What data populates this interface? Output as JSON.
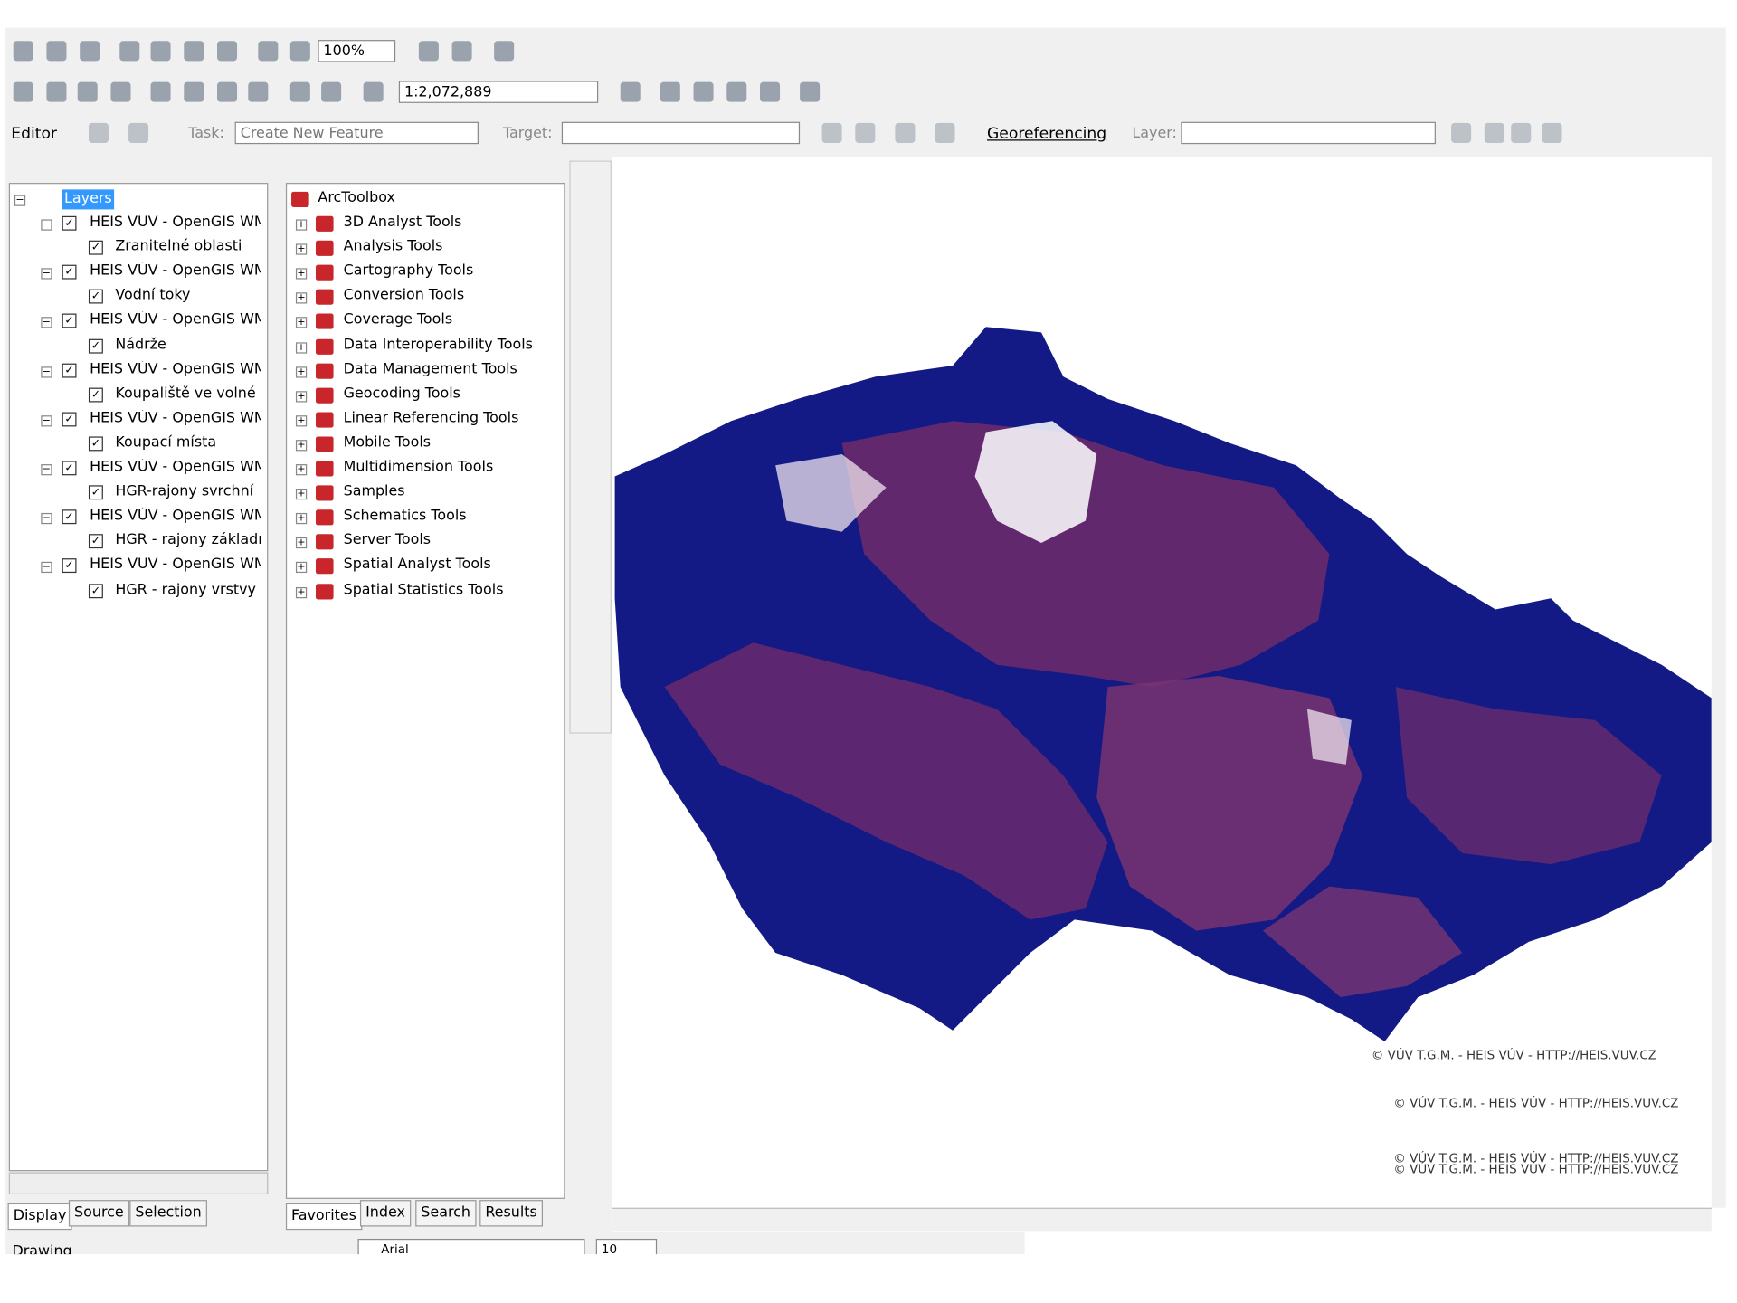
{
  "toolbar": {
    "zoom": "100%",
    "scale": "1:2,072,889",
    "editor": "Editor",
    "task_label": "Task:",
    "task": "Create New Feature",
    "target_label": "Target:",
    "georeferencing": "Georeferencing",
    "layer_label": "Layer:"
  },
  "toc": {
    "root": "Layers",
    "groups": [
      {
        "name": "HEIS VÚV - OpenGIS WM",
        "layer": "Zranitelné oblasti"
      },
      {
        "name": "HEIS VÚV - OpenGIS WM",
        "layer": "Vodní toky"
      },
      {
        "name": "HEIS VÚV - OpenGIS WM",
        "layer": "Nádrže"
      },
      {
        "name": "HEIS VÚV - OpenGIS WM",
        "layer": "Koupaliště ve volné p"
      },
      {
        "name": "HEIS VÚV - OpenGIS WM",
        "layer": "Koupací místa"
      },
      {
        "name": "HEIS VÚV - OpenGIS WM",
        "layer": "HGR-rajony svrchní"
      },
      {
        "name": "HEIS VÚV - OpenGIS WM",
        "layer": "HGR - rajony základn"
      },
      {
        "name": "HEIS VÚV - OpenGIS WM",
        "layer": "HGR - rajony vrstvy l"
      }
    ],
    "tabs": [
      "Display",
      "Source",
      "Selection"
    ]
  },
  "toolbox": {
    "root": "ArcToolbox",
    "items": [
      "3D Analyst Tools",
      "Analysis Tools",
      "Cartography Tools",
      "Conversion Tools",
      "Coverage Tools",
      "Data Interoperability Tools",
      "Data Management Tools",
      "Geocoding Tools",
      "Linear Referencing Tools",
      "Mobile Tools",
      "Multidimension Tools",
      "Samples",
      "Schematics Tools",
      "Server Tools",
      "Spatial Analyst Tools",
      "Spatial Statistics Tools"
    ],
    "tabs": [
      "Favorites",
      "Index",
      "Search",
      "Results"
    ]
  },
  "map": {
    "credits": [
      "© VÚV T.G.M. - HEIS VÚV - HTTP://HEIS.VUV.CZ",
      "© VÚV T.G.M. - HEIS VÚV - HTTP://HEIS.VUV.CZ",
      "© VÚV T.G.M. - HEIS VÚV - HTTP://HEIS.VUV.CZ",
      "© VÚV T.G.M. - HEIS VÚV - HTTP://HEIS.VUV.CZ"
    ]
  },
  "drawing": {
    "label": "Drawing",
    "font": "Arial",
    "size": "10"
  }
}
